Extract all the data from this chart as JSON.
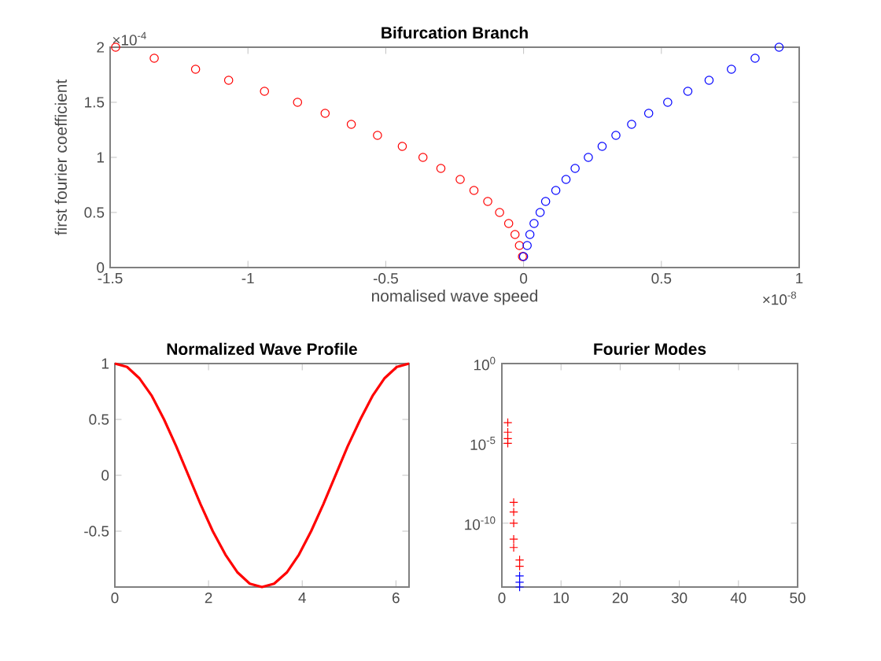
{
  "chart_data": [
    {
      "type": "scatter",
      "title": "Bifurcation Branch",
      "xlabel": "nomalised wave speed",
      "ylabel": "first fourier coefficient",
      "marker": "circle",
      "xlim": [
        -1.5,
        1
      ],
      "xticks": [
        -1.5,
        -1,
        -0.5,
        0,
        0.5,
        1
      ],
      "ylim": [
        0,
        2
      ],
      "yticks": [
        0,
        0.5,
        1,
        1.5,
        2
      ],
      "annotations": [
        "×10$^{-4}$",
        "×10$^{-8}$"
      ],
      "series": [
        {
          "color": "#ff0000",
          "x": [
            -1.48,
            -1.34,
            -1.19,
            -1.07,
            -0.94,
            -0.82,
            -0.72,
            -0.625,
            -0.53,
            -0.44,
            -0.365,
            -0.3,
            -0.23,
            -0.18,
            -0.13,
            -0.087,
            -0.054,
            -0.031,
            -0.015,
            -0.004
          ],
          "values": [
            2.0,
            1.9,
            1.8,
            1.7,
            1.6,
            1.5,
            1.4,
            1.3,
            1.2,
            1.1,
            1.0,
            0.9,
            0.8,
            0.7,
            0.6,
            0.5,
            0.4,
            0.3,
            0.2,
            0.1
          ]
        },
        {
          "color": "#0000ff",
          "x": [
            0.0,
            0.013,
            0.023,
            0.038,
            0.06,
            0.08,
            0.117,
            0.154,
            0.187,
            0.235,
            0.285,
            0.335,
            0.392,
            0.454,
            0.523,
            0.596,
            0.673,
            0.754,
            0.84,
            0.927
          ],
          "values": [
            0.1,
            0.2,
            0.3,
            0.4,
            0.5,
            0.6,
            0.7,
            0.8,
            0.9,
            1.0,
            1.1,
            1.2,
            1.3,
            1.4,
            1.5,
            1.6,
            1.7,
            1.8,
            1.9,
            2.0
          ]
        }
      ]
    },
    {
      "type": "line",
      "title": "Normalized Wave Profile",
      "xlim": [
        0,
        6.28
      ],
      "xticks": [
        0,
        2,
        4,
        6
      ],
      "ylim": [
        -1,
        1
      ],
      "yticks": [
        -0.5,
        0,
        0.5,
        1
      ],
      "series": [
        {
          "color": "#ff0000",
          "x": [
            0,
            0.26,
            0.52,
            0.79,
            1.05,
            1.31,
            1.57,
            1.83,
            2.09,
            2.36,
            2.62,
            2.88,
            3.14,
            3.4,
            3.67,
            3.93,
            4.19,
            4.45,
            4.71,
            4.97,
            5.24,
            5.5,
            5.76,
            6.02,
            6.28
          ],
          "values": [
            1,
            0.97,
            0.87,
            0.71,
            0.5,
            0.26,
            0,
            -0.26,
            -0.5,
            -0.71,
            -0.87,
            -0.97,
            -1,
            -0.97,
            -0.87,
            -0.71,
            -0.5,
            -0.26,
            0,
            0.26,
            0.5,
            0.71,
            0.87,
            0.97,
            1
          ]
        }
      ]
    },
    {
      "type": "scatter",
      "title": "Fourier Modes",
      "marker": "cross",
      "log": "y",
      "xlim": [
        0,
        50
      ],
      "xticks": [
        0,
        10,
        20,
        30,
        40,
        50
      ],
      "ylim": [
        1e-14,
        1
      ],
      "yticks": [
        {
          "value": 1e-10,
          "label": "10$^{-10}$"
        },
        {
          "value": 1e-05,
          "label": "10$^{-5}$"
        },
        {
          "value": 1,
          "label": "10$^{0}$"
        }
      ],
      "series": [
        {
          "color": "#ff0000",
          "x": [
            1,
            1,
            1,
            1,
            2,
            2,
            2,
            2,
            2,
            3,
            3
          ],
          "values": [
            0.0002,
            5e-05,
            2e-05,
            1e-05,
            2e-09,
            5e-10,
            1e-10,
            1e-11,
            3e-12,
            5e-13,
            2e-13
          ]
        },
        {
          "color": "#0000ff",
          "x": [
            3,
            3,
            3
          ],
          "values": [
            5e-14,
            2e-14,
            1e-14
          ]
        }
      ]
    }
  ]
}
